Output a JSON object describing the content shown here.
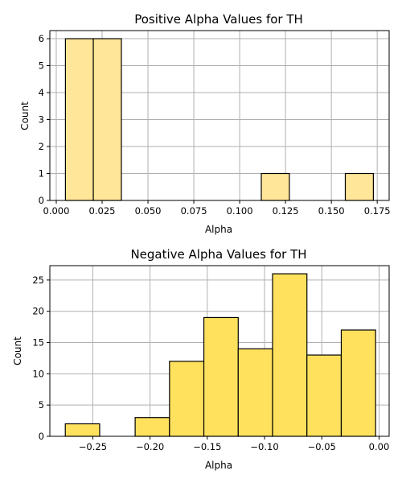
{
  "chart_data": [
    {
      "type": "bar",
      "title": "Positive Alpha Values for TH",
      "xlabel": "Alpha",
      "ylabel": "Count",
      "xlim": [
        -0.0035,
        0.1815
      ],
      "ylim": [
        0,
        6.3
      ],
      "xticks": [
        0.0,
        0.025,
        0.05,
        0.075,
        0.1,
        0.125,
        0.15,
        0.175
      ],
      "xtick_labels": [
        "0.000",
        "0.025",
        "0.050",
        "0.075",
        "0.100",
        "0.125",
        "0.150",
        "0.175"
      ],
      "yticks": [
        0,
        1,
        2,
        3,
        4,
        5,
        6
      ],
      "ytick_labels": [
        "0",
        "1",
        "2",
        "3",
        "4",
        "5",
        "6"
      ],
      "grid": true,
      "bar_color": "#ffe699",
      "bins": [
        {
          "x0": 0.005,
          "x1": 0.0202,
          "count": 6
        },
        {
          "x0": 0.0202,
          "x1": 0.0355,
          "count": 6
        },
        {
          "x0": 0.0355,
          "x1": 0.0508,
          "count": 0
        },
        {
          "x0": 0.0508,
          "x1": 0.066,
          "count": 0
        },
        {
          "x0": 0.066,
          "x1": 0.0813,
          "count": 0
        },
        {
          "x0": 0.0813,
          "x1": 0.0966,
          "count": 0
        },
        {
          "x0": 0.0966,
          "x1": 0.1118,
          "count": 0
        },
        {
          "x0": 0.1118,
          "x1": 0.1271,
          "count": 1
        },
        {
          "x0": 0.1271,
          "x1": 0.1424,
          "count": 0
        },
        {
          "x0": 0.1424,
          "x1": 0.1576,
          "count": 0
        },
        {
          "x0": 0.1576,
          "x1": 0.1729,
          "count": 1
        }
      ]
    },
    {
      "type": "bar",
      "title": "Negative Alpha Values for TH",
      "xlabel": "Alpha",
      "ylabel": "Count",
      "xlim": [
        -0.2875,
        0.0088
      ],
      "ylim": [
        0,
        27.3
      ],
      "xticks": [
        -0.25,
        -0.2,
        -0.15,
        -0.1,
        -0.05,
        0.0
      ],
      "xtick_labels": [
        "−0.25",
        "−0.20",
        "−0.15",
        "−0.10",
        "−0.05",
        "0.00"
      ],
      "yticks": [
        0,
        5,
        10,
        15,
        20,
        25
      ],
      "ytick_labels": [
        "0",
        "5",
        "10",
        "15",
        "20",
        "25"
      ],
      "grid": true,
      "bar_color": "#ffe15e",
      "bins": [
        {
          "x0": -0.274,
          "x1": -0.244,
          "count": 2
        },
        {
          "x0": -0.244,
          "x1": -0.213,
          "count": 0
        },
        {
          "x0": -0.213,
          "x1": -0.183,
          "count": 3
        },
        {
          "x0": -0.183,
          "x1": -0.153,
          "count": 12
        },
        {
          "x0": -0.153,
          "x1": -0.123,
          "count": 19
        },
        {
          "x0": -0.123,
          "x1": -0.093,
          "count": 14
        },
        {
          "x0": -0.093,
          "x1": -0.063,
          "count": 26
        },
        {
          "x0": -0.063,
          "x1": -0.033,
          "count": 13
        },
        {
          "x0": -0.033,
          "x1": -0.003,
          "count": 17
        }
      ]
    }
  ]
}
